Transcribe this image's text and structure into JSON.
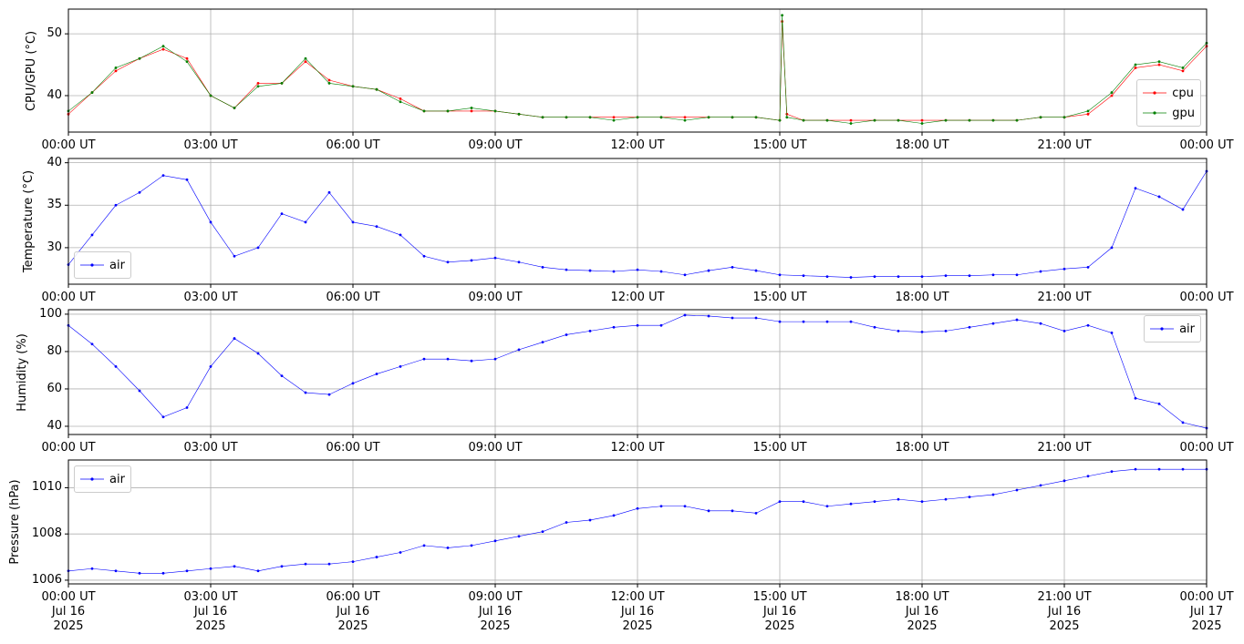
{
  "chart_data": [
    {
      "type": "line",
      "ylabel": "CPU/GPU (°C)",
      "x": [
        0,
        0.5,
        1,
        1.5,
        2,
        2.5,
        3,
        3.5,
        4,
        4.5,
        5,
        5.5,
        6,
        6.5,
        7,
        7.5,
        8,
        8.5,
        9,
        9.5,
        10,
        10.5,
        11,
        11.5,
        12,
        12.5,
        13,
        13.5,
        14,
        14.5,
        15,
        15.05,
        15.15,
        15.5,
        16,
        16.5,
        17,
        17.5,
        18,
        18.5,
        19,
        19.5,
        20,
        20.5,
        21,
        21.5,
        22,
        22.5,
        23,
        23.5,
        24
      ],
      "series": [
        {
          "name": "cpu",
          "color": "#ff0000",
          "values": [
            37,
            40.5,
            44,
            46,
            47.5,
            46,
            40,
            38,
            42,
            42,
            45.5,
            42.5,
            41.5,
            41,
            39.5,
            37.5,
            37.5,
            37.5,
            37.5,
            37,
            36.5,
            36.5,
            36.5,
            36.5,
            36.5,
            36.5,
            36.5,
            36.5,
            36.5,
            36.5,
            36,
            52,
            37,
            36,
            36,
            36,
            36,
            36,
            36,
            36,
            36,
            36,
            36,
            36.5,
            36.5,
            37,
            40,
            44.5,
            45,
            44,
            48
          ]
        },
        {
          "name": "gpu",
          "color": "#008000",
          "values": [
            37.5,
            40.5,
            44.5,
            46,
            48,
            45.5,
            40,
            38,
            41.5,
            42,
            46,
            42,
            41.5,
            41,
            39,
            37.5,
            37.5,
            38,
            37.5,
            37,
            36.5,
            36.5,
            36.5,
            36,
            36.5,
            36.5,
            36,
            36.5,
            36.5,
            36.5,
            36,
            53,
            36.5,
            36,
            36,
            35.5,
            36,
            36,
            35.5,
            36,
            36,
            36,
            36,
            36.5,
            36.5,
            37.5,
            40.5,
            45,
            45.5,
            44.5,
            48.5
          ]
        }
      ],
      "xlim": [
        0,
        24
      ],
      "ylim": [
        34.1,
        54
      ],
      "yticks": [
        40,
        50
      ],
      "grid": true,
      "legend": "lower right",
      "xticks": [
        {
          "value": 0,
          "label": "00:00 UT"
        },
        {
          "value": 3,
          "label": "03:00 UT"
        },
        {
          "value": 6,
          "label": "06:00 UT"
        },
        {
          "value": 9,
          "label": "09:00 UT"
        },
        {
          "value": 12,
          "label": "12:00 UT"
        },
        {
          "value": 15,
          "label": "15:00 UT"
        },
        {
          "value": 18,
          "label": "18:00 UT"
        },
        {
          "value": 21,
          "label": "21:00 UT"
        },
        {
          "value": 24,
          "label": "00:00 UT"
        }
      ]
    },
    {
      "type": "line",
      "ylabel": "Temperature (°C)",
      "x": [
        0,
        0.5,
        1,
        1.5,
        2,
        2.5,
        3,
        3.5,
        4,
        4.5,
        5,
        5.5,
        6,
        6.5,
        7,
        7.5,
        8,
        8.5,
        9,
        9.5,
        10,
        10.5,
        11,
        11.5,
        12,
        12.5,
        13,
        13.5,
        14,
        14.5,
        15,
        15.5,
        16,
        16.5,
        17,
        17.5,
        18,
        18.5,
        19,
        19.5,
        20,
        20.5,
        21,
        21.5,
        22,
        22.5,
        23,
        23.5,
        24
      ],
      "series": [
        {
          "name": "air",
          "color": "#0000ff",
          "values": [
            28,
            31.5,
            35,
            36.5,
            38.5,
            38,
            33,
            29,
            30,
            34,
            33,
            36.5,
            33,
            32.5,
            31.5,
            29,
            28.3,
            28.5,
            28.8,
            28.3,
            27.7,
            27.4,
            27.3,
            27.2,
            27.4,
            27.2,
            26.8,
            27.3,
            27.7,
            27.3,
            26.8,
            26.7,
            26.6,
            26.5,
            26.6,
            26.6,
            26.6,
            26.7,
            26.7,
            26.8,
            26.8,
            27.2,
            27.5,
            27.7,
            30,
            37,
            36,
            34.5,
            39
          ]
        }
      ],
      "xlim": [
        0,
        24
      ],
      "ylim": [
        25.7,
        40.5
      ],
      "yticks": [
        30,
        35,
        40
      ],
      "grid": true,
      "legend": "lower left",
      "xticks": [
        {
          "value": 0,
          "label": "00:00 UT"
        },
        {
          "value": 3,
          "label": "03:00 UT"
        },
        {
          "value": 6,
          "label": "06:00 UT"
        },
        {
          "value": 9,
          "label": "09:00 UT"
        },
        {
          "value": 12,
          "label": "12:00 UT"
        },
        {
          "value": 15,
          "label": "15:00 UT"
        },
        {
          "value": 18,
          "label": "18:00 UT"
        },
        {
          "value": 21,
          "label": "21:00 UT"
        },
        {
          "value": 24,
          "label": "00:00 UT"
        }
      ]
    },
    {
      "type": "line",
      "ylabel": "Humidity (%)",
      "x": [
        0,
        0.5,
        1,
        1.5,
        2,
        2.5,
        3,
        3.5,
        4,
        4.5,
        5,
        5.5,
        6,
        6.5,
        7,
        7.5,
        8,
        8.5,
        9,
        9.5,
        10,
        10.5,
        11,
        11.5,
        12,
        12.5,
        13,
        13.5,
        14,
        14.5,
        15,
        15.5,
        16,
        16.5,
        17,
        17.5,
        18,
        18.5,
        19,
        19.5,
        20,
        20.5,
        21,
        21.5,
        22,
        22.5,
        23,
        23.5,
        24
      ],
      "series": [
        {
          "name": "air",
          "color": "#0000ff",
          "values": [
            94,
            84,
            72,
            59,
            45,
            50,
            72,
            87,
            79,
            67,
            58,
            57,
            63,
            68,
            72,
            76,
            76,
            75,
            76,
            81,
            85,
            89,
            91,
            93,
            94,
            94,
            99.5,
            99,
            98,
            98,
            96,
            96,
            96,
            96,
            93,
            91,
            90.5,
            91,
            93,
            95,
            97,
            95,
            91,
            94,
            90,
            55,
            52,
            42,
            39
          ]
        }
      ],
      "xlim": [
        0,
        24
      ],
      "ylim": [
        35.6,
        102.4
      ],
      "yticks": [
        40,
        60,
        80,
        100
      ],
      "grid": true,
      "legend": "upper right",
      "xticks": [
        {
          "value": 0,
          "label": "00:00 UT"
        },
        {
          "value": 3,
          "label": "03:00 UT"
        },
        {
          "value": 6,
          "label": "06:00 UT"
        },
        {
          "value": 9,
          "label": "09:00 UT"
        },
        {
          "value": 12,
          "label": "12:00 UT"
        },
        {
          "value": 15,
          "label": "15:00 UT"
        },
        {
          "value": 18,
          "label": "18:00 UT"
        },
        {
          "value": 21,
          "label": "21:00 UT"
        },
        {
          "value": 24,
          "label": "00:00 UT"
        }
      ]
    },
    {
      "type": "line",
      "ylabel": "Pressure (hPa)",
      "x": [
        0,
        0.5,
        1,
        1.5,
        2,
        2.5,
        3,
        3.5,
        4,
        4.5,
        5,
        5.5,
        6,
        6.5,
        7,
        7.5,
        8,
        8.5,
        9,
        9.5,
        10,
        10.5,
        11,
        11.5,
        12,
        12.5,
        13,
        13.5,
        14,
        14.5,
        15,
        15.5,
        16,
        16.5,
        17,
        17.5,
        18,
        18.5,
        19,
        19.5,
        20,
        20.5,
        21,
        21.5,
        22,
        22.5,
        23,
        23.5,
        24
      ],
      "series": [
        {
          "name": "air",
          "color": "#0000ff",
          "values": [
            1006.4,
            1006.5,
            1006.4,
            1006.3,
            1006.3,
            1006.4,
            1006.5,
            1006.6,
            1006.4,
            1006.6,
            1006.7,
            1006.7,
            1006.8,
            1007,
            1007.2,
            1007.5,
            1007.4,
            1007.5,
            1007.7,
            1007.9,
            1008.1,
            1008.5,
            1008.6,
            1008.8,
            1009.1,
            1009.2,
            1009.2,
            1009,
            1009,
            1008.9,
            1009.4,
            1009.4,
            1009.2,
            1009.3,
            1009.4,
            1009.5,
            1009.4,
            1009.5,
            1009.6,
            1009.7,
            1009.9,
            1010.1,
            1010.3,
            1010.5,
            1010.7,
            1010.8,
            1010.8,
            1010.8,
            1010.8
          ]
        }
      ],
      "xlim": [
        0,
        24
      ],
      "ylim": [
        1005.84,
        1011.2
      ],
      "yticks": [
        1006,
        1008,
        1010
      ],
      "grid": true,
      "legend": "upper left",
      "xticks": [
        {
          "value": 0,
          "label": "00:00 UT\nJul 16\n2025"
        },
        {
          "value": 3,
          "label": "03:00 UT\nJul 16\n2025"
        },
        {
          "value": 6,
          "label": "06:00 UT\nJul 16\n2025"
        },
        {
          "value": 9,
          "label": "09:00 UT\nJul 16\n2025"
        },
        {
          "value": 12,
          "label": "12:00 UT\nJul 16\n2025"
        },
        {
          "value": 15,
          "label": "15:00 UT\nJul 16\n2025"
        },
        {
          "value": 18,
          "label": "18:00 UT\nJul 16\n2025"
        },
        {
          "value": 21,
          "label": "21:00 UT\nJul 16\n2025"
        },
        {
          "value": 24,
          "label": "00:00 UT\nJul 17\n2025"
        }
      ]
    }
  ]
}
